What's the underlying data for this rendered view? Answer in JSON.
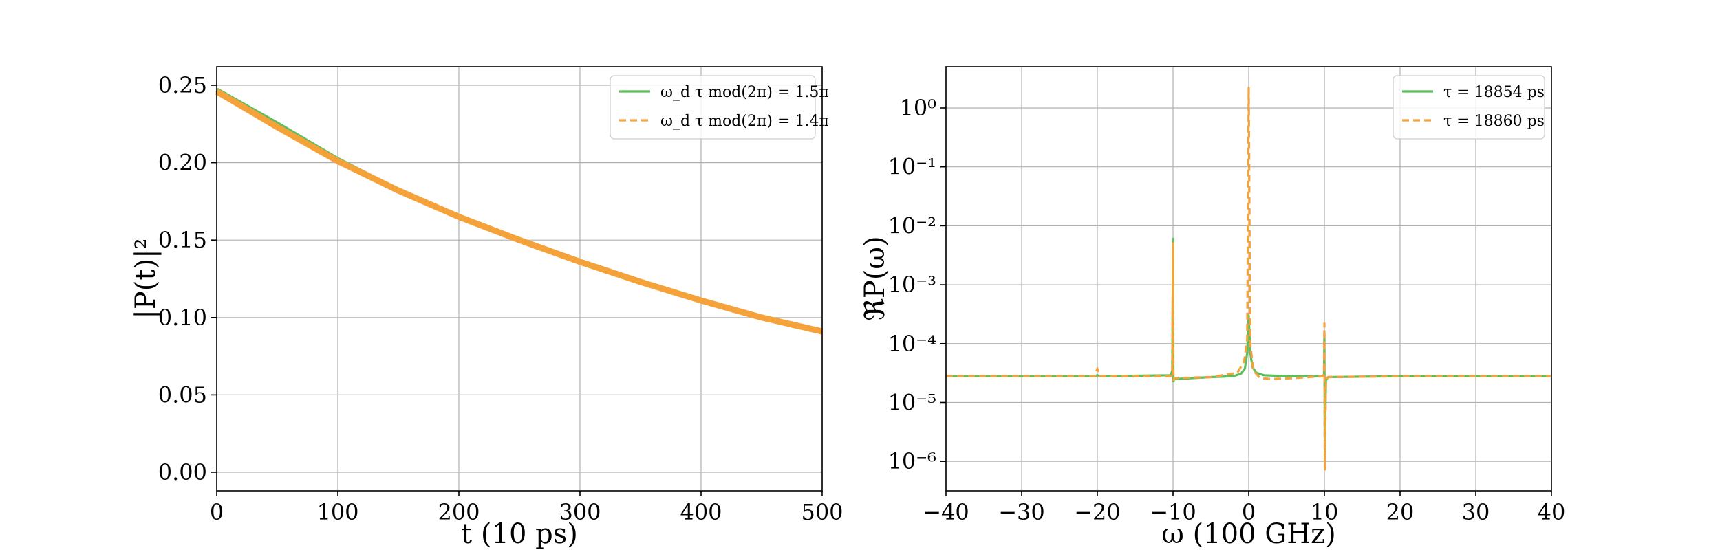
{
  "colors": {
    "green": "#5cbf5c",
    "orange": "#f5a23a"
  },
  "chart_data": [
    {
      "type": "line",
      "xlabel": "t (10 ps)",
      "ylabel": "|P(t)|²",
      "xlim": [
        0,
        500
      ],
      "ylim": [
        -0.012,
        0.262
      ],
      "xticks": [
        0,
        100,
        200,
        300,
        400,
        500
      ],
      "xtick_labels": [
        "0",
        "100",
        "200",
        "300",
        "400",
        "500"
      ],
      "yticks": [
        0.0,
        0.05,
        0.1,
        0.15,
        0.2,
        0.25
      ],
      "ytick_labels": [
        "0.00",
        "0.05",
        "0.10",
        "0.15",
        "0.20",
        "0.25"
      ],
      "grid": true,
      "legend_position": "top-right",
      "series": [
        {
          "name": "ω_d τ mod(2π) = 1.5π",
          "style": "solid",
          "x": [
            0,
            50,
            100,
            150,
            200,
            250,
            300,
            350,
            400,
            450,
            500
          ],
          "values": [
            0.247,
            0.225,
            0.202,
            0.182,
            0.165,
            0.15,
            0.136,
            0.123,
            0.111,
            0.1,
            0.091
          ]
        },
        {
          "name": "ω_d τ mod(2π) = 1.4π",
          "style": "dashed",
          "x": [
            0,
            50,
            100,
            150,
            200,
            250,
            300,
            350,
            400,
            450,
            500
          ],
          "values": [
            0.246,
            0.223,
            0.201,
            0.182,
            0.165,
            0.15,
            0.136,
            0.123,
            0.111,
            0.1,
            0.091
          ]
        }
      ]
    },
    {
      "type": "line",
      "xlabel": "ω (100 GHz)",
      "ylabel": "ℜP(ω)",
      "xlim": [
        -40,
        40
      ],
      "yscale": "log",
      "ylim_log10": [
        -6.5,
        0.7
      ],
      "xticks": [
        -40,
        -30,
        -20,
        -10,
        0,
        10,
        20,
        30,
        40
      ],
      "xtick_labels": [
        "−40",
        "−30",
        "−20",
        "−10",
        "0",
        "10",
        "20",
        "30",
        "40"
      ],
      "yticks_log10": [
        0,
        -1,
        -2,
        -3,
        -4,
        -5,
        -6
      ],
      "ytick_labels": [
        "10⁰",
        "10⁻¹",
        "10⁻²",
        "10⁻³",
        "10⁻⁴",
        "10⁻⁵",
        "10⁻⁶"
      ],
      "grid": true,
      "legend_position": "top-right",
      "series": [
        {
          "name": "τ = 18854 ps",
          "style": "solid",
          "x": [
            -40,
            -20.4,
            -20,
            -19.6,
            -10.3,
            -10.1,
            -10,
            -9.95,
            -9.8,
            -5,
            -2,
            -1,
            -0.5,
            -0.2,
            0,
            0.2,
            0.5,
            1,
            2,
            5,
            9.8,
            9.95,
            10,
            10.05,
            10.2,
            10.5,
            20,
            40
          ],
          "values": [
            2.8e-05,
            2.8e-05,
            2.9e-05,
            2.8e-05,
            2.9e-05,
            3.5e-05,
            0.006,
            2.3e-05,
            2.5e-05,
            2.7e-05,
            2.8e-05,
            3.1e-05,
            3.8e-05,
            7e-05,
            0.0003,
            7e-05,
            4e-05,
            3.2e-05,
            2.9e-05,
            2.8e-05,
            2.8e-05,
            3e-05,
            0.00015,
            1.5e-06,
            2.4e-05,
            2.7e-05,
            2.8e-05,
            2.8e-05
          ]
        },
        {
          "name": "τ = 18860 ps",
          "style": "dashed",
          "x": [
            -40,
            -20.3,
            -20,
            -19.7,
            -10.3,
            -10.1,
            -10,
            -9.95,
            -9.8,
            -5,
            -1.5,
            -0.6,
            -0.2,
            0,
            0.2,
            0.6,
            1.5,
            3,
            6,
            9.8,
            9.95,
            10,
            10.05,
            10.2,
            10.5,
            20,
            40
          ],
          "values": [
            2.8e-05,
            2.8e-05,
            3.8e-05,
            2.8e-05,
            2.8e-05,
            3e-05,
            0.005,
            2.4e-05,
            2.6e-05,
            2.7e-05,
            3.2e-05,
            5e-05,
            0.00012,
            2.2,
            0.0001,
            3.5e-05,
            2.6e-05,
            2.5e-05,
            2.6e-05,
            2.8e-05,
            3e-05,
            0.00022,
            7e-07,
            2.5e-05,
            2.7e-05,
            2.8e-05,
            2.8e-05
          ]
        }
      ]
    }
  ]
}
